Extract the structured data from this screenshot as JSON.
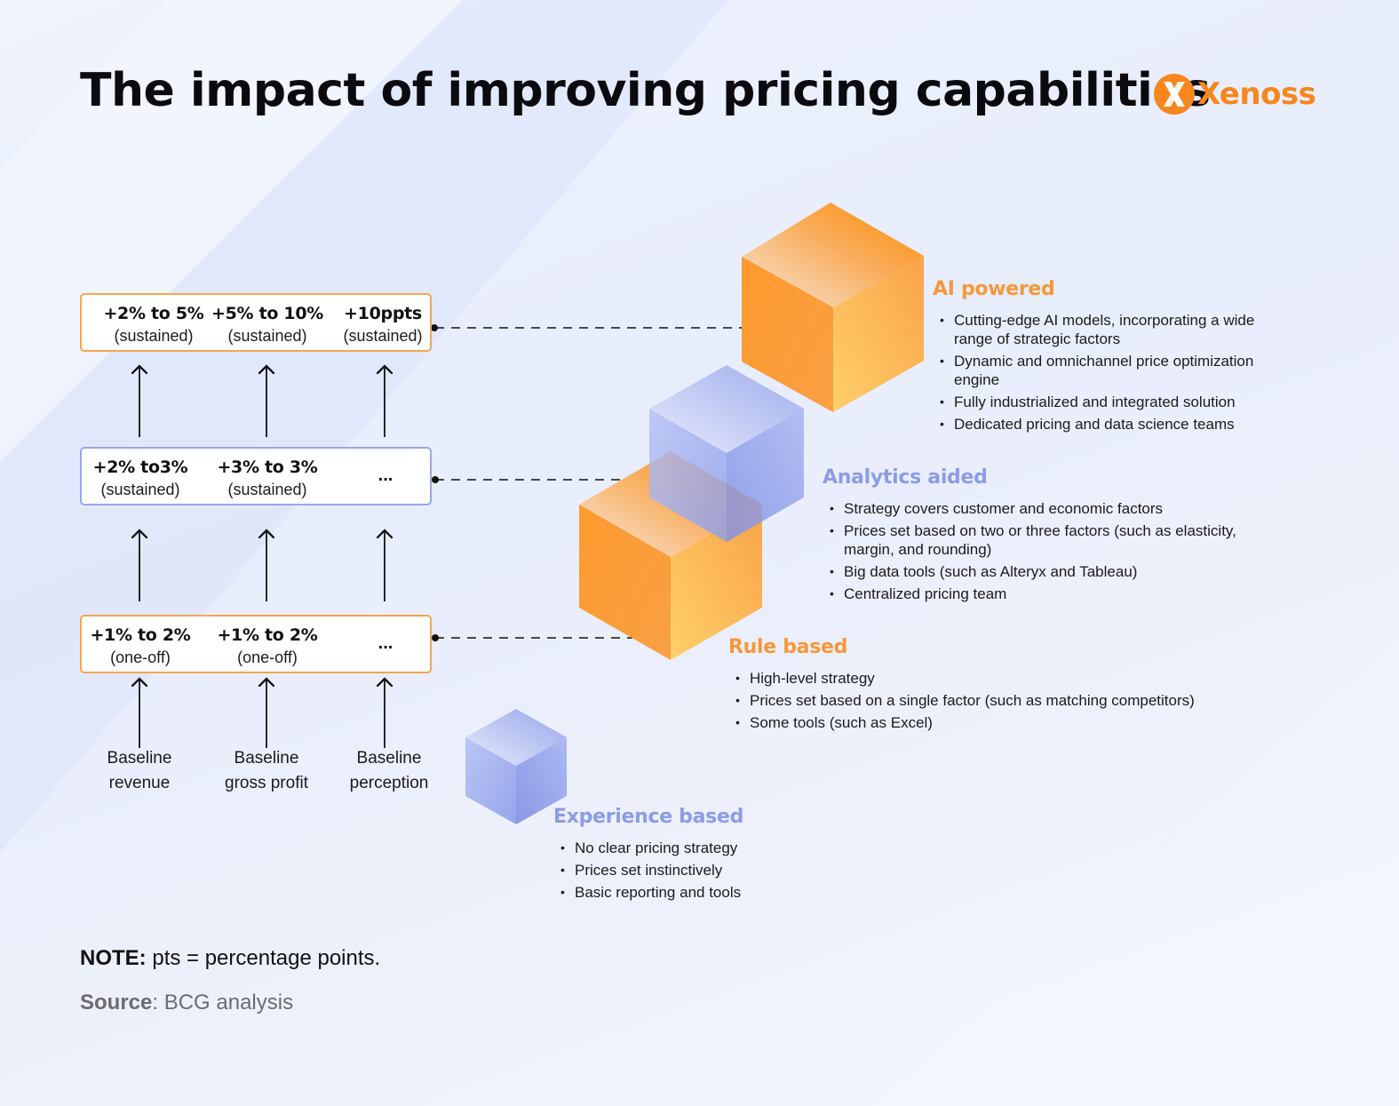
{
  "title": "The impact of improving pricing capabilities",
  "logo": {
    "text": "Xenoss",
    "icon": "xenoss-logo-icon",
    "color": "#f7861c"
  },
  "matrix": {
    "rows": [
      {
        "cells": [
          {
            "value": "+2% to 5%",
            "sub": "(sustained)"
          },
          {
            "value": "+5% to 10%",
            "sub": "(sustained)"
          },
          {
            "value": "+10ppts",
            "sub": "(sustained)"
          }
        ]
      },
      {
        "cells": [
          {
            "value": "+2% to3%",
            "sub": "(sustained)"
          },
          {
            "value": "+3% to 3%",
            "sub": "(sustained)"
          }
        ],
        "ellipsis": "..."
      },
      {
        "cells": [
          {
            "value": "+1% to 2%",
            "sub": "(one-off)"
          },
          {
            "value": "+1% to 2%",
            "sub": "(one-off)"
          }
        ],
        "ellipsis": "..."
      }
    ],
    "baselines": [
      {
        "line1": "Baseline",
        "line2": "revenue"
      },
      {
        "line1": "Baseline",
        "line2": "gross profit"
      },
      {
        "line1": "Baseline",
        "line2": "perception"
      }
    ]
  },
  "levels": [
    {
      "title": "AI powered",
      "color": "#f6983a",
      "bullets": [
        "Cutting-edge AI models, incorporating a wide range of strategic factors",
        "Dynamic and omnichannel price optimization engine",
        "Fully industrialized and integrated solution",
        "Dedicated pricing and data science teams"
      ]
    },
    {
      "title": "Analytics aided",
      "color": "#8c9ce6",
      "bullets": [
        "Strategy covers customer and economic factors",
        "Prices set based on two or three factors (such as elasticity, margin, and rounding)",
        "Big data tools (such as Alteryx and Tableau)",
        "Centralized pricing team"
      ]
    },
    {
      "title": "Rule based",
      "color": "#f6983a",
      "bullets": [
        "High-level strategy",
        "Prices set based on a single factor (such as matching competitors)",
        "Some tools (such as Excel)"
      ]
    },
    {
      "title": "Experience based",
      "color": "#8c9ce6",
      "bullets": [
        "No clear pricing strategy",
        "Prices set instinctively",
        "Basic reporting and tools"
      ]
    }
  ],
  "note": {
    "label": "NOTE:",
    "text": " pts = percentage points."
  },
  "source": {
    "label": "Source",
    "text": ": BCG analysis"
  }
}
